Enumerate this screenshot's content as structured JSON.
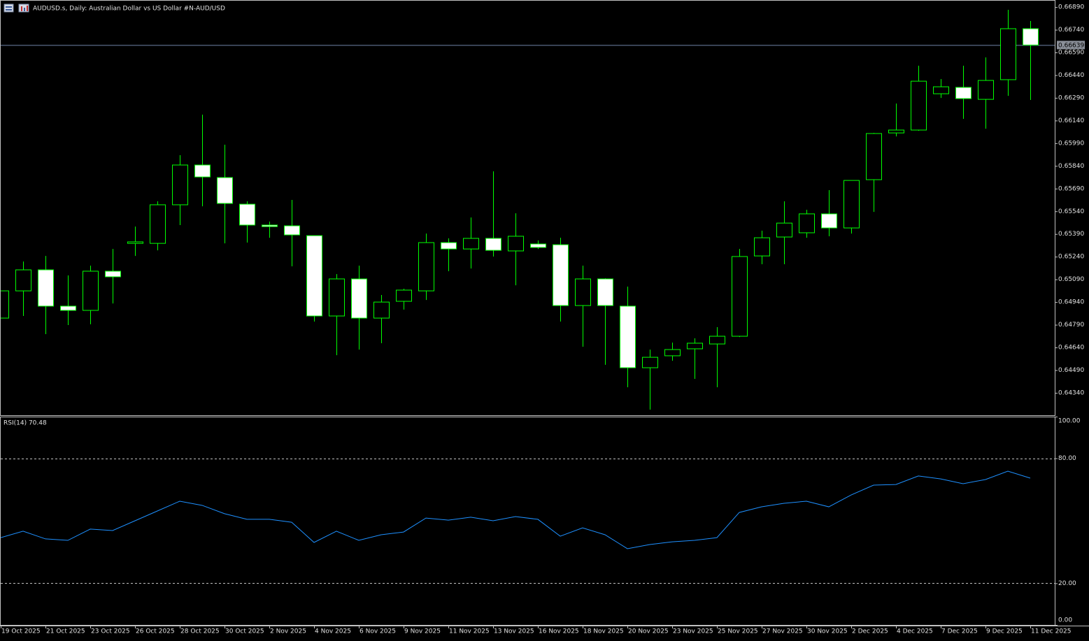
{
  "chart_data": [
    {
      "type": "candlestick",
      "title": "AUDUSD.s, Daily:  Australian Dollar vs US Dollar #N-AUD/USD",
      "categories": [
        "19 Oct 2025",
        null,
        "21 Oct 2025",
        null,
        "23 Oct 2025",
        null,
        "26 Oct 2025",
        null,
        "28 Oct 2025",
        null,
        "30 Oct 2025",
        null,
        "2 Nov 2025",
        null,
        "4 Nov 2025",
        null,
        "6 Nov 2025",
        null,
        "9 Nov 2025",
        null,
        "11 Nov 2025",
        null,
        "13 Nov 2025",
        null,
        "16 Nov 2025",
        null,
        "18 Nov 2025",
        null,
        "20 Nov 2025",
        null,
        "23 Nov 2025",
        null,
        "25 Nov 2025",
        null,
        "27 Nov 2025",
        null,
        "30 Nov 2025",
        null,
        "2 Dec 2025",
        null,
        "4 Dec 2025",
        null,
        "7 Dec 2025",
        null,
        "9 Dec 2025",
        null,
        "11 Dec 2025"
      ],
      "open": [
        0.64834,
        0.65014,
        0.65153,
        0.64913,
        0.64885,
        0.65144,
        0.65328,
        0.65328,
        0.65583,
        0.65846,
        0.65763,
        0.65587,
        0.65449,
        0.65444,
        0.65379,
        0.64848,
        0.65093,
        0.64834,
        0.64945,
        0.65014,
        0.65333,
        0.65291,
        0.65361,
        0.65278,
        0.65324,
        0.65319,
        0.64917,
        0.65093,
        0.64913,
        0.64506,
        0.64585,
        0.64631,
        0.64663,
        0.64714,
        0.65245,
        0.6537,
        0.65398,
        0.65523,
        0.6543,
        0.65749,
        0.66058,
        0.66077,
        0.66317,
        0.66359,
        0.6628,
        0.6641,
        0.66747
      ],
      "high": [
        0.65014,
        0.65208,
        0.65245,
        0.65116,
        0.65181,
        0.65291,
        0.65439,
        0.65606,
        0.65911,
        0.66179,
        0.6598,
        0.65606,
        0.65472,
        0.65615,
        0.65379,
        0.65125,
        0.65181,
        0.64987,
        0.65028,
        0.65393,
        0.65361,
        0.65499,
        0.65804,
        0.65527,
        0.65347,
        0.65365,
        0.65181,
        0.65097,
        0.65042,
        0.64626,
        0.64672,
        0.647,
        0.64774,
        0.65291,
        0.65412,
        0.65606,
        0.6555,
        0.6568,
        0.65744,
        0.66058,
        0.66252,
        0.66502,
        0.66414,
        0.66502,
        0.66557,
        0.66872,
        0.66798
      ],
      "low": [
        0.64834,
        0.64848,
        0.64728,
        0.64788,
        0.64793,
        0.64931,
        0.65245,
        0.65282,
        0.65449,
        0.65573,
        0.65328,
        0.65333,
        0.65365,
        0.65176,
        0.64811,
        0.64589,
        0.64626,
        0.64668,
        0.6489,
        0.64954,
        0.65144,
        0.65162,
        0.65241,
        0.65051,
        0.65291,
        0.64811,
        0.64645,
        0.64525,
        0.64377,
        0.64229,
        0.64552,
        0.64432,
        0.64377,
        0.64709,
        0.6519,
        0.6519,
        0.65365,
        0.65375,
        0.65393,
        0.65536,
        0.66035,
        0.66072,
        0.66289,
        0.66151,
        0.66086,
        0.66303,
        0.66276
      ],
      "close": [
        0.65014,
        0.65153,
        0.64913,
        0.64885,
        0.65144,
        0.65107,
        0.65338,
        0.65583,
        0.65846,
        0.65767,
        0.65592,
        0.65449,
        0.65439,
        0.65384,
        0.64848,
        0.65093,
        0.64834,
        0.6494,
        0.65019,
        0.65333,
        0.65291,
        0.65361,
        0.65282,
        0.65375,
        0.65301,
        0.64917,
        0.65093,
        0.64917,
        0.64506,
        0.64575,
        0.64626,
        0.64668,
        0.64714,
        0.65241,
        0.65365,
        0.65462,
        0.65523,
        0.6543,
        0.65744,
        0.66054,
        0.66077,
        0.664,
        0.66363,
        0.66285,
        0.66405,
        0.66747,
        0.66639
      ],
      "ylim": [
        0.64192,
        0.66932
      ],
      "yticks": [
        {
          "value": 0.6689,
          "label": "0.66890"
        },
        {
          "value": 0.6674,
          "label": "0.66740"
        },
        {
          "value": 0.6659,
          "label": "0.66590"
        },
        {
          "value": 0.6644,
          "label": "0.66440"
        },
        {
          "value": 0.6629,
          "label": "0.66290"
        },
        {
          "value": 0.6614,
          "label": "0.66140"
        },
        {
          "value": 0.6599,
          "label": "0.65990"
        },
        {
          "value": 0.6584,
          "label": "0.65840"
        },
        {
          "value": 0.6569,
          "label": "0.65690"
        },
        {
          "value": 0.6554,
          "label": "0.65540"
        },
        {
          "value": 0.6539,
          "label": "0.65390"
        },
        {
          "value": 0.6524,
          "label": "0.65240"
        },
        {
          "value": 0.6509,
          "label": "0.65090"
        },
        {
          "value": 0.6494,
          "label": "0.64940"
        },
        {
          "value": 0.6479,
          "label": "0.64790"
        },
        {
          "value": 0.6464,
          "label": "0.64640"
        },
        {
          "value": 0.6449,
          "label": "0.64490"
        },
        {
          "value": 0.6434,
          "label": "0.64340"
        }
      ],
      "up_color": "#000000",
      "down_color": "#ffffff",
      "line_color": "#00ff00",
      "current_price": 0.66639,
      "current_price_color": "#6f83a8"
    },
    {
      "type": "line",
      "title": "RSI(14) 70.48",
      "values": [
        41.9,
        45.0,
        41.3,
        40.6,
        46.0,
        45.3,
        50.0,
        54.7,
        59.4,
        57.4,
        53.4,
        50.7,
        50.7,
        49.3,
        39.6,
        45.0,
        40.6,
        43.3,
        44.6,
        51.3,
        50.3,
        51.7,
        50.0,
        52.0,
        50.7,
        42.6,
        46.6,
        43.3,
        36.6,
        38.6,
        39.9,
        40.6,
        41.9,
        54.0,
        56.7,
        58.4,
        59.4,
        56.7,
        62.4,
        67.1,
        67.4,
        71.5,
        70.1,
        67.8,
        69.8,
        73.8,
        70.48
      ],
      "color": "#1e90ff",
      "ylim": [
        0,
        100
      ],
      "yticks": [
        {
          "value": 100,
          "label": "100.00"
        },
        {
          "value": 80,
          "label": "80.00"
        },
        {
          "value": 20,
          "label": "20.00"
        },
        {
          "value": 0,
          "label": "0.00"
        }
      ],
      "levels": [
        80,
        20
      ]
    }
  ]
}
